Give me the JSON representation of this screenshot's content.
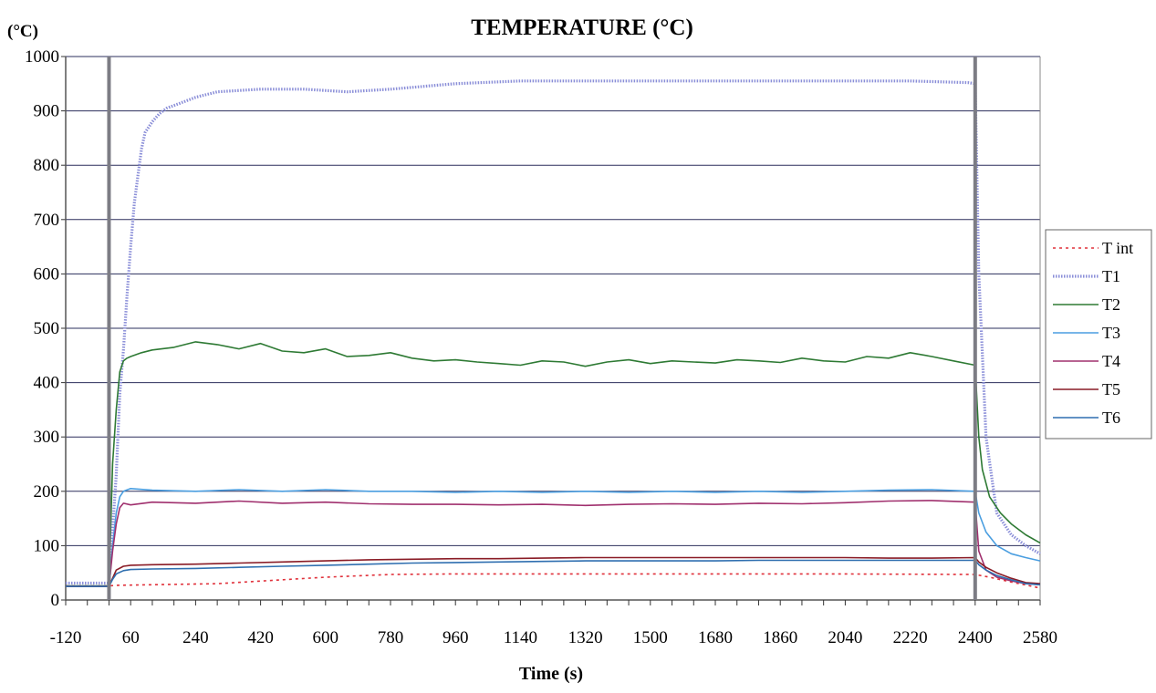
{
  "chart_data": {
    "type": "line",
    "title": "TEMPERATURE (°C)",
    "ylabel": "(°C)",
    "xlabel": "Time (s)",
    "xlim": [
      -120,
      2580
    ],
    "ylim": [
      0,
      1000
    ],
    "xticks": [
      -120,
      60,
      240,
      420,
      600,
      780,
      960,
      1140,
      1320,
      1500,
      1680,
      1860,
      2040,
      2220,
      2400,
      2580
    ],
    "yticks": [
      0,
      100,
      200,
      300,
      400,
      500,
      600,
      700,
      800,
      900,
      1000
    ],
    "grid": "horizontal",
    "legend_position": "right",
    "vertical_markers": [
      0,
      2400
    ],
    "series": [
      {
        "name": "T int",
        "color": "#e0303a",
        "style": "dotted",
        "x": [
          -120,
          0,
          20,
          300,
          600,
          780,
          960,
          1500,
          2000,
          2400,
          2440,
          2500,
          2580
        ],
        "y": [
          26,
          26,
          27,
          30,
          42,
          47,
          48,
          48,
          48,
          47,
          42,
          33,
          22
        ]
      },
      {
        "name": "T1",
        "color": "#8a8ed8",
        "style": "thick-dotted",
        "x": [
          -120,
          0,
          20,
          30,
          40,
          50,
          60,
          70,
          80,
          90,
          100,
          120,
          140,
          160,
          200,
          240,
          300,
          420,
          540,
          660,
          780,
          960,
          1140,
          1320,
          1500,
          1680,
          1860,
          2040,
          2220,
          2380,
          2400,
          2410,
          2430,
          2460,
          2500,
          2540,
          2580
        ],
        "y": [
          31,
          31,
          230,
          380,
          460,
          560,
          650,
          730,
          780,
          830,
          860,
          880,
          895,
          905,
          915,
          925,
          935,
          940,
          940,
          935,
          940,
          950,
          955,
          955,
          955,
          955,
          955,
          955,
          955,
          952,
          950,
          600,
          300,
          160,
          120,
          100,
          85
        ]
      },
      {
        "name": "T2",
        "color": "#2e7a34",
        "style": "solid",
        "x": [
          -120,
          0,
          10,
          20,
          30,
          40,
          50,
          60,
          90,
          120,
          180,
          240,
          300,
          360,
          420,
          480,
          540,
          600,
          660,
          720,
          780,
          840,
          900,
          960,
          1020,
          1080,
          1140,
          1200,
          1260,
          1320,
          1380,
          1440,
          1500,
          1560,
          1620,
          1680,
          1740,
          1800,
          1860,
          1920,
          1980,
          2040,
          2100,
          2160,
          2220,
          2280,
          2340,
          2400,
          2410,
          2420,
          2440,
          2470,
          2500,
          2540,
          2580
        ],
        "y": [
          26,
          26,
          250,
          350,
          420,
          440,
          445,
          448,
          455,
          460,
          465,
          475,
          470,
          462,
          472,
          458,
          455,
          462,
          448,
          450,
          455,
          445,
          440,
          442,
          438,
          435,
          432,
          440,
          438,
          430,
          438,
          442,
          435,
          440,
          438,
          436,
          442,
          440,
          437,
          445,
          440,
          438,
          448,
          445,
          455,
          448,
          440,
          432,
          300,
          240,
          190,
          160,
          140,
          120,
          105
        ]
      },
      {
        "name": "T3",
        "color": "#4a9ee0",
        "style": "solid",
        "x": [
          -120,
          0,
          10,
          20,
          30,
          40,
          60,
          120,
          240,
          360,
          480,
          600,
          720,
          840,
          960,
          1080,
          1200,
          1320,
          1440,
          1560,
          1680,
          1800,
          1920,
          2040,
          2160,
          2280,
          2400,
          2410,
          2430,
          2460,
          2500,
          2540,
          2580
        ],
        "y": [
          25,
          25,
          100,
          160,
          190,
          200,
          205,
          202,
          200,
          203,
          200,
          203,
          200,
          200,
          198,
          200,
          198,
          200,
          198,
          200,
          198,
          200,
          198,
          200,
          202,
          203,
          200,
          160,
          125,
          100,
          85,
          78,
          72
        ]
      },
      {
        "name": "T4",
        "color": "#a0306e",
        "style": "solid",
        "x": [
          -120,
          0,
          10,
          20,
          30,
          40,
          60,
          120,
          240,
          360,
          480,
          600,
          720,
          840,
          960,
          1080,
          1200,
          1320,
          1440,
          1560,
          1680,
          1800,
          1920,
          2040,
          2160,
          2280,
          2400,
          2410,
          2430,
          2460,
          2500,
          2540,
          2580
        ],
        "y": [
          25,
          25,
          90,
          140,
          170,
          178,
          175,
          180,
          178,
          182,
          178,
          180,
          177,
          176,
          176,
          175,
          176,
          174,
          176,
          177,
          176,
          178,
          177,
          179,
          182,
          183,
          180,
          90,
          55,
          42,
          35,
          30,
          28
        ]
      },
      {
        "name": "T5",
        "color": "#8a1c26",
        "style": "solid",
        "x": [
          -120,
          0,
          10,
          20,
          40,
          60,
          120,
          240,
          360,
          480,
          600,
          720,
          840,
          960,
          1080,
          1200,
          1320,
          1440,
          1560,
          1680,
          1800,
          1920,
          2040,
          2160,
          2280,
          2400,
          2410,
          2430,
          2460,
          2500,
          2540,
          2580
        ],
        "y": [
          25,
          25,
          40,
          55,
          62,
          64,
          65,
          66,
          68,
          70,
          72,
          74,
          75,
          76,
          76,
          77,
          78,
          78,
          78,
          78,
          78,
          78,
          78,
          77,
          77,
          78,
          70,
          60,
          50,
          40,
          32,
          30
        ]
      },
      {
        "name": "T6",
        "color": "#2f6fb0",
        "style": "solid",
        "x": [
          -120,
          0,
          10,
          20,
          40,
          60,
          120,
          240,
          360,
          480,
          600,
          720,
          840,
          960,
          1080,
          1200,
          1320,
          1440,
          1560,
          1680,
          1800,
          1920,
          2040,
          2160,
          2280,
          2400,
          2410,
          2430,
          2460,
          2500,
          2540,
          2580
        ],
        "y": [
          25,
          25,
          38,
          48,
          54,
          56,
          57,
          58,
          60,
          62,
          64,
          66,
          68,
          69,
          70,
          71,
          72,
          72,
          72,
          72,
          73,
          73,
          73,
          73,
          73,
          73,
          65,
          55,
          45,
          37,
          30,
          28
        ]
      }
    ]
  }
}
